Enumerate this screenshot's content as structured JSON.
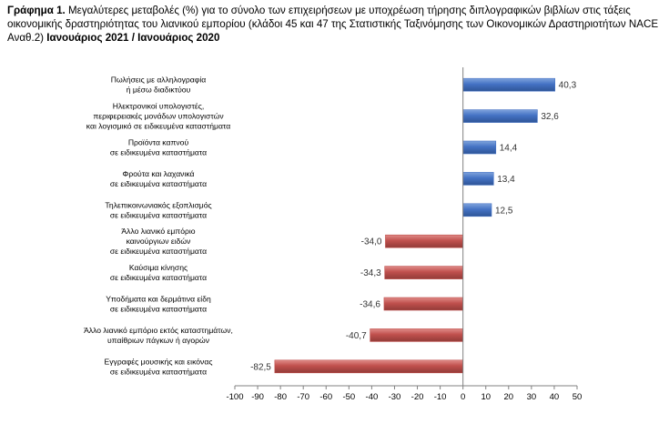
{
  "title": {
    "prefix": "Γράφημα 1.",
    "text": " Μεγαλύτερες μεταβολές (%) για το σύνολο των επιχειρήσεων με υποχρέωση τήρησης διπλογραφικών βιβλίων στις τάξεις οικονομικής δραστηριότητας του λιανικού εμπορίου (κλάδοι 45 και 47 της Στατιστικής Ταξινόμησης των Οικονομικών Δραστηριοτήτων NACE Αναθ.2) ",
    "period": "Ιανουάριος 2021 / Ιανουάριος 2020"
  },
  "colors": {
    "positive": "#4472c4",
    "negative": "#c0504d"
  },
  "chart_data": {
    "type": "bar",
    "orientation": "horizontal",
    "categories": [
      [
        "Πωλήσεις με αλληλογραφία",
        "ή μέσω διαδικτύου"
      ],
      [
        "Ηλεκτρονικοί υπολογιστές,",
        "περιφερειακές μονάδων υπολογιστών",
        "και λογισμικό σε ειδικευμένα καταστήματα"
      ],
      [
        "Προϊόντα καπνού",
        "σε ειδικευμένα καταστήματα"
      ],
      [
        "Φρούτα και λαχανικά",
        "σε ειδικευμένα καταστήματα"
      ],
      [
        "Τηλεπικοινωνιακός εξοπλισμός",
        "σε ειδικευμένα καταστήματα"
      ],
      [
        "Άλλο λιανικό εμπόριο",
        "καινούργιων ειδών",
        "σε ειδικευμένα καταστήματα"
      ],
      [
        "Καύσιμα κίνησης",
        "σε ειδικευμένα καταστήματα"
      ],
      [
        "Υποδήματα και δερμάτινα είδη",
        "σε ειδικευμένα καταστήματα"
      ],
      [
        "Άλλο λιανικό εμπόριο εκτός καταστημάτων,",
        "υπαίθριων πάγκων ή αγορών"
      ],
      [
        "Εγγραφές μουσικής και εικόνας",
        "σε ειδικευμένα καταστήματα"
      ]
    ],
    "values": [
      40.3,
      32.6,
      14.4,
      13.4,
      12.5,
      -34.0,
      -34.3,
      -34.6,
      -40.7,
      -82.5
    ],
    "value_labels": [
      "40,3",
      "32,6",
      "14,4",
      "13,4",
      "12,5",
      "-34,0",
      "-34,3",
      "-34,6",
      "-40,7",
      "-82,5"
    ],
    "xlim": [
      -100,
      50
    ],
    "xticks": [
      -100,
      -90,
      -80,
      -70,
      -60,
      -50,
      -40,
      -30,
      -20,
      -10,
      0,
      10,
      20,
      30,
      40,
      50
    ],
    "grid": false,
    "legend": "none"
  }
}
